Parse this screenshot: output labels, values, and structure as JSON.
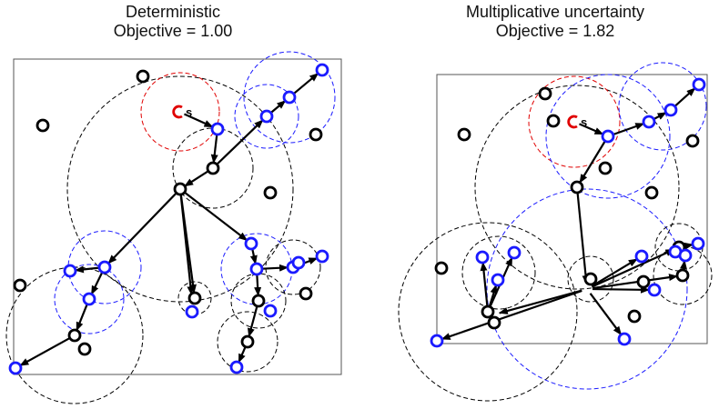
{
  "colors": {
    "black_node": "#000000",
    "blue_node": "#1a1aff",
    "red_source": "#e00000",
    "circle_black": "#000000",
    "circle_blue": "#1a1aff",
    "circle_red": "#e00000",
    "frame": "#555555"
  },
  "panels": [
    {
      "title": "Deterministic",
      "subtitle": "Objective = 1.00",
      "source_label": "s",
      "source": [
        197,
        123
      ],
      "nodes": [
        {
          "p": [
            157,
            84
          ],
          "c": "black"
        },
        {
          "p": [
            47,
            138
          ],
          "c": "black"
        },
        {
          "p": [
            347,
            148
          ],
          "c": "black"
        },
        {
          "p": [
            297,
            212
          ],
          "c": "black"
        },
        {
          "p": [
            22,
            314
          ],
          "c": "black"
        },
        {
          "p": [
            336,
            323
          ],
          "c": "black"
        },
        {
          "p": [
            93,
            384
          ],
          "c": "black"
        },
        {
          "p": [
            234,
            185
          ],
          "c": "black"
        },
        {
          "p": [
            198,
            208
          ],
          "c": "black"
        },
        {
          "p": [
            214,
            328
          ],
          "c": "black"
        },
        {
          "p": [
            284,
            331
          ],
          "c": "black"
        },
        {
          "p": [
            82,
            369
          ],
          "c": "black"
        },
        {
          "p": [
            272,
            376
          ],
          "c": "black"
        },
        {
          "p": [
            354,
            77
          ],
          "c": "blue"
        },
        {
          "p": [
            318,
            107
          ],
          "c": "blue"
        },
        {
          "p": [
            293,
            128
          ],
          "c": "blue"
        },
        {
          "p": [
            239,
            142
          ],
          "c": "blue"
        },
        {
          "p": [
            77,
            298
          ],
          "c": "blue"
        },
        {
          "p": [
            115,
            294
          ],
          "c": "blue"
        },
        {
          "p": [
            98,
            329
          ],
          "c": "blue"
        },
        {
          "p": [
            211,
            343
          ],
          "c": "blue"
        },
        {
          "p": [
            276,
            268
          ],
          "c": "blue"
        },
        {
          "p": [
            282,
            296
          ],
          "c": "blue"
        },
        {
          "p": [
            322,
            294
          ],
          "c": "blue"
        },
        {
          "p": [
            328,
            289
          ],
          "c": "blue"
        },
        {
          "p": [
            354,
            282
          ],
          "c": "blue"
        },
        {
          "p": [
            297,
            342
          ],
          "c": "blue"
        },
        {
          "p": [
            260,
            404
          ],
          "c": "blue"
        },
        {
          "p": [
            17,
            405
          ],
          "c": "blue"
        }
      ],
      "edges": [
        [
          [
            197,
            123
          ],
          [
            239,
            142
          ]
        ],
        [
          [
            239,
            142
          ],
          [
            234,
            185
          ]
        ],
        [
          [
            234,
            185
          ],
          [
            293,
            128
          ]
        ],
        [
          [
            293,
            128
          ],
          [
            318,
            107
          ]
        ],
        [
          [
            318,
            107
          ],
          [
            354,
            77
          ]
        ],
        [
          [
            234,
            185
          ],
          [
            198,
            208
          ]
        ],
        [
          [
            198,
            208
          ],
          [
            115,
            294
          ]
        ],
        [
          [
            115,
            294
          ],
          [
            77,
            298
          ]
        ],
        [
          [
            115,
            294
          ],
          [
            98,
            329
          ]
        ],
        [
          [
            98,
            329
          ],
          [
            82,
            369
          ]
        ],
        [
          [
            82,
            369
          ],
          [
            17,
            405
          ]
        ],
        [
          [
            198,
            208
          ],
          [
            214,
            328
          ]
        ],
        [
          [
            198,
            208
          ],
          [
            276,
            268
          ]
        ],
        [
          [
            276,
            268
          ],
          [
            282,
            296
          ]
        ],
        [
          [
            282,
            296
          ],
          [
            322,
            294
          ]
        ],
        [
          [
            322,
            294
          ],
          [
            354,
            282
          ]
        ],
        [
          [
            282,
            296
          ],
          [
            284,
            331
          ]
        ],
        [
          [
            284,
            331
          ],
          [
            272,
            376
          ]
        ],
        [
          [
            272,
            376
          ],
          [
            260,
            404
          ]
        ],
        [
          [
            198,
            208
          ],
          [
            211,
            330
          ]
        ]
      ],
      "circles": [
        {
          "p": [
            198,
            208
          ],
          "r": 124,
          "c": "black"
        },
        {
          "p": [
            198,
            123
          ],
          "r": 43,
          "c": "red"
        },
        {
          "p": [
            234,
            185
          ],
          "r": 44,
          "c": "black"
        },
        {
          "p": [
            318,
            107
          ],
          "r": 50,
          "c": "blue"
        },
        {
          "p": [
            293,
            128
          ],
          "r": 35,
          "c": "blue"
        },
        {
          "p": [
            115,
            294
          ],
          "r": 40,
          "c": "blue"
        },
        {
          "p": [
            98,
            329
          ],
          "r": 38,
          "c": "blue"
        },
        {
          "p": [
            82,
            369
          ],
          "r": 75,
          "c": "black"
        },
        {
          "p": [
            214,
            328
          ],
          "r": 18,
          "c": "black"
        },
        {
          "p": [
            282,
            296
          ],
          "r": 39,
          "c": "blue"
        },
        {
          "p": [
            322,
            294
          ],
          "r": 30,
          "c": "black"
        },
        {
          "p": [
            284,
            331
          ],
          "r": 30,
          "c": "black"
        },
        {
          "p": [
            272,
            376
          ],
          "r": 33,
          "c": "black"
        }
      ],
      "frame": [
        15,
        65,
        375,
        412
      ]
    },
    {
      "title": "Multiplicative uncertainty",
      "subtitle": "Objective = 1.82",
      "source_label": "s",
      "source": [
        631,
        134
      ],
      "nodes": [
        {
          "p": [
            599,
            103
          ],
          "c": "black"
        },
        {
          "p": [
            608,
            133
          ],
          "c": "black"
        },
        {
          "p": [
            510,
            148
          ],
          "c": "black"
        },
        {
          "p": [
            761,
            155
          ],
          "c": "black"
        },
        {
          "p": [
            716,
            212
          ],
          "c": "black"
        },
        {
          "p": [
            485,
            295
          ],
          "c": "black"
        },
        {
          "p": [
            697,
            348
          ],
          "c": "black"
        },
        {
          "p": [
            665,
            185
          ],
          "c": "black"
        },
        {
          "p": [
            634,
            206
          ],
          "c": "black"
        },
        {
          "p": [
            649,
            307
          ],
          "c": "black"
        },
        {
          "p": [
            707,
            310
          ],
          "c": "black"
        },
        {
          "p": [
            746,
            272
          ],
          "c": "black"
        },
        {
          "p": [
            750,
            303
          ],
          "c": "black"
        },
        {
          "p": [
            536,
            343
          ],
          "c": "black"
        },
        {
          "p": [
            543,
            355
          ],
          "c": "black"
        },
        {
          "p": [
            768,
            93
          ],
          "c": "blue"
        },
        {
          "p": [
            737,
            121
          ],
          "c": "blue"
        },
        {
          "p": [
            713,
            134
          ],
          "c": "blue"
        },
        {
          "p": [
            668,
            150
          ],
          "c": "blue"
        },
        {
          "p": [
            530,
            283
          ],
          "c": "blue"
        },
        {
          "p": [
            565,
            278
          ],
          "c": "blue"
        },
        {
          "p": [
            547,
            308
          ],
          "c": "blue"
        },
        {
          "p": [
            705,
            282
          ],
          "c": "blue"
        },
        {
          "p": [
            742,
            277
          ],
          "c": "blue"
        },
        {
          "p": [
            767,
            268
          ],
          "c": "blue"
        },
        {
          "p": [
            753,
            281
          ],
          "c": "blue"
        },
        {
          "p": [
            719,
            319
          ],
          "c": "blue"
        },
        {
          "p": [
            686,
            373
          ],
          "c": "blue"
        },
        {
          "p": [
            480,
            375
          ],
          "c": "blue"
        }
      ],
      "edges": [
        [
          [
            631,
            134
          ],
          [
            668,
            150
          ]
        ],
        [
          [
            668,
            150
          ],
          [
            713,
            134
          ]
        ],
        [
          [
            713,
            134
          ],
          [
            737,
            121
          ]
        ],
        [
          [
            737,
            121
          ],
          [
            768,
            93
          ]
        ],
        [
          [
            668,
            150
          ],
          [
            634,
            206
          ]
        ],
        [
          [
            634,
            206
          ],
          [
            645,
            318
          ]
        ],
        [
          [
            645,
            318
          ],
          [
            480,
            375
          ]
        ],
        [
          [
            645,
            318
          ],
          [
            543,
            346
          ]
        ],
        [
          [
            536,
            343
          ],
          [
            530,
            283
          ]
        ],
        [
          [
            536,
            343
          ],
          [
            565,
            278
          ]
        ],
        [
          [
            536,
            343
          ],
          [
            547,
            308
          ]
        ],
        [
          [
            645,
            318
          ],
          [
            705,
            282
          ]
        ],
        [
          [
            645,
            318
          ],
          [
            746,
            272
          ]
        ],
        [
          [
            746,
            272
          ],
          [
            767,
            268
          ]
        ],
        [
          [
            645,
            318
          ],
          [
            750,
            303
          ]
        ],
        [
          [
            645,
            318
          ],
          [
            719,
            319
          ]
        ],
        [
          [
            645,
            318
          ],
          [
            686,
            373
          ]
        ],
        [
          [
            750,
            303
          ],
          [
            753,
            281
          ]
        ]
      ],
      "circles": [
        {
          "p": [
            634,
            206
          ],
          "r": 112,
          "c": "black"
        },
        {
          "p": [
            631,
            134
          ],
          "r": 50,
          "c": "red"
        },
        {
          "p": [
            668,
            150
          ],
          "r": 68,
          "c": "blue"
        },
        {
          "p": [
            728,
            117
          ],
          "r": 48,
          "c": "blue"
        },
        {
          "p": [
            645,
            318
          ],
          "r": 110,
          "c": "blue"
        },
        {
          "p": [
            536,
            343
          ],
          "r": 98,
          "c": "black"
        },
        {
          "p": [
            548,
            300
          ],
          "r": 40,
          "c": "black"
        },
        {
          "p": [
            649,
            307
          ],
          "r": 25,
          "c": "black"
        },
        {
          "p": [
            746,
            272
          ],
          "r": 26,
          "c": "black"
        },
        {
          "p": [
            750,
            303
          ],
          "r": 32,
          "c": "black"
        }
      ],
      "frame": [
        480,
        82,
        777,
        378
      ]
    }
  ]
}
